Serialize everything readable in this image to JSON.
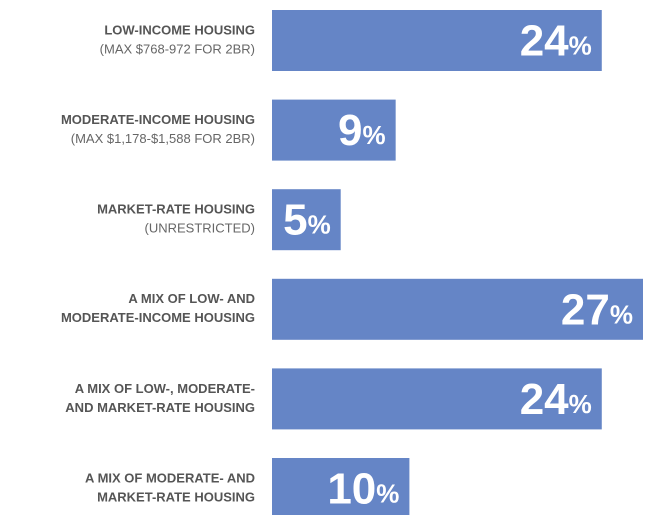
{
  "chart_data": {
    "type": "barh",
    "categories": [
      [
        "LOW-INCOME HOUSING"
      ],
      [
        "MODERATE-INCOME HOUSING"
      ],
      [
        "MARKET-RATE HOUSING"
      ],
      [
        "A MIX OF LOW- AND",
        "MODERATE-INCOME HOUSING"
      ],
      [
        "A MIX OF LOW-, MODERATE-",
        "AND MARKET-RATE HOUSING"
      ],
      [
        "A MIX OF MODERATE- AND",
        "MARKET-RATE HOUSING"
      ]
    ],
    "notes": [
      "(MAX $768-972 FOR 2BR)",
      "(MAX $1,178-$1,588 FOR 2BR)",
      "(UNRESTRICTED)",
      null,
      null,
      null
    ],
    "values": [
      24,
      9,
      5,
      27,
      24,
      10
    ],
    "value_labels": [
      "24%",
      "9%",
      "5%",
      "27%",
      "24%",
      "10%"
    ],
    "color": "#6585c6"
  }
}
